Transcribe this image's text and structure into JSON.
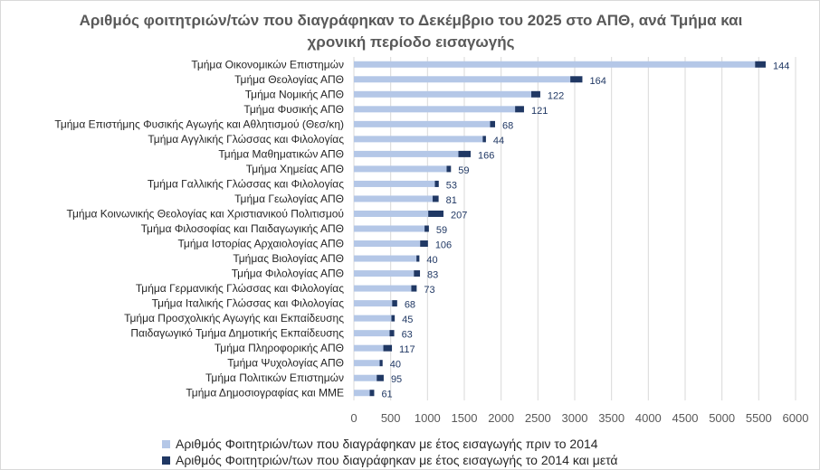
{
  "chart_data": {
    "type": "bar",
    "orientation": "horizontal",
    "stacked": true,
    "title": "Αριθμός φοιτητριών/τών που διαγράφηκαν το Δεκέμβριο του 2025 στο ΑΠΘ, ανά Τμήμα και χρονική περίοδο εισαγωγής",
    "title_lines": [
      "Αριθμός φοιτητριών/τών που διαγράφηκαν το Δεκέμβριο του 2025 στο ΑΠΘ, ανά Τμήμα και",
      "χρονική περίοδο εισαγωγής"
    ],
    "categories": [
      "Τμήμα Οικονομικών Επιστημών",
      "Τμήμα Θεολογίας ΑΠΘ",
      "Τμήμα Νομικής ΑΠΘ",
      "Τμήμα Φυσικής ΑΠΘ",
      "Τμήμα Επιστήμης Φυσικής Αγωγής και Αθλητισμού (Θεσ/κη)",
      "Τμήμα Αγγλικής Γλώσσας και Φιλολογίας",
      "Τμήμα Μαθηματικών ΑΠΘ",
      "Τμήμα Χημείας ΑΠΘ",
      "Τμήμα Γαλλικής Γλώσσας και Φιλολογίας",
      "Τμήμα Γεωλογίας ΑΠΘ",
      "Τμήμα Κοινωνικής Θεολογίας και Χριστιανικού Πολιτισμού",
      "Τμήμα Φιλοσοφίας και Παιδαγωγικής ΑΠΘ",
      "Τμήμα Ιστορίας Αρχαιολογίας ΑΠΘ",
      "Τμήμας Βιολογίας ΑΠΘ",
      "Τμήμα Φιλολογίας ΑΠΘ",
      "Τμήμα Γερμανικής Γλώσσας και Φιλολογίας",
      "Τμήμα Ιταλικής Γλώσσας και Φιλολογίας",
      "Τμήμα Προσχολικής Αγωγής και Εκπαίδευσης",
      "Παιδαγωγικό Τμήμα Δημοτικής Εκπαίδευσης",
      "Τμήμα Πληροφορικής ΑΠΘ",
      "Τμήμα Ψυχολογίας ΑΠΘ",
      "Τμήμα Πολιτικών Επιστημών",
      "Τμήμα Δημοσιογραφίας και ΜΜΕ"
    ],
    "series": [
      {
        "name": "Αριθμός Φοιτητριών/των που διαγράφηκαν με έτος εισαγωγής πριν το 2014",
        "color": "#b4c7e7",
        "values": [
          5450,
          2940,
          2410,
          2190,
          1850,
          1750,
          1420,
          1260,
          1100,
          1070,
          1010,
          960,
          900,
          850,
          815,
          780,
          520,
          510,
          485,
          400,
          350,
          310,
          215
        ]
      },
      {
        "name": "Αριθμός Φοιτητριών/των που διαγράφηκαν με έτος εισαγωγής το 2014 και μετά",
        "color": "#203864",
        "values": [
          144,
          164,
          122,
          121,
          68,
          44,
          166,
          59,
          53,
          81,
          207,
          59,
          106,
          40,
          83,
          73,
          68,
          45,
          63,
          117,
          40,
          95,
          61
        ]
      }
    ],
    "xlim": [
      0,
      6000
    ],
    "xticks": [
      "0",
      "500",
      "1000",
      "1500",
      "2000",
      "2500",
      "3000",
      "3500",
      "4000",
      "4500",
      "5000",
      "5500",
      "6000"
    ],
    "grid": true,
    "legend_position": "bottom"
  }
}
